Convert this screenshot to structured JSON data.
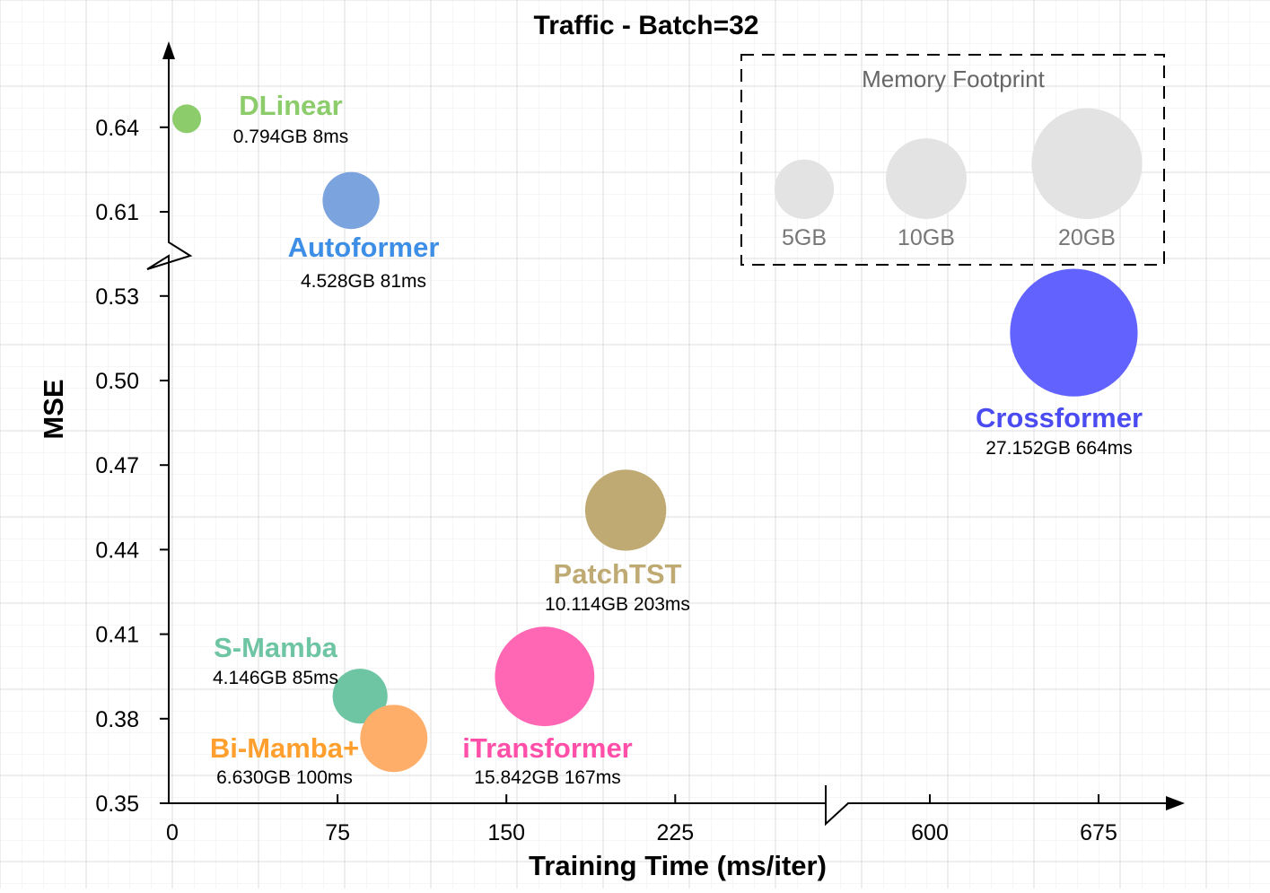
{
  "chart_data": {
    "type": "scatter",
    "variant": "bubble",
    "title": "Traffic - Batch=32",
    "xlabel": "Training Time (ms/iter)",
    "ylabel": "MSE",
    "x_axis": {
      "broken": true,
      "segments": [
        [
          0,
          270
        ],
        [
          570,
          700
        ]
      ],
      "ticks": [
        {
          "value": 0,
          "label": "0"
        },
        {
          "value": 75,
          "label": "75"
        },
        {
          "value": 150,
          "label": "150"
        },
        {
          "value": 225,
          "label": "225"
        },
        {
          "value": 600,
          "label": "600"
        },
        {
          "value": 675,
          "label": "675"
        }
      ]
    },
    "y_axis": {
      "broken": true,
      "segments": [
        [
          0.35,
          0.56
        ],
        [
          0.595,
          0.66
        ]
      ],
      "ticks": [
        {
          "value": 0.35,
          "label": "0.35"
        },
        {
          "value": 0.38,
          "label": "0.38"
        },
        {
          "value": 0.41,
          "label": "0.41"
        },
        {
          "value": 0.44,
          "label": "0.44"
        },
        {
          "value": 0.47,
          "label": "0.47"
        },
        {
          "value": 0.5,
          "label": "0.50"
        },
        {
          "value": 0.53,
          "label": "0.53"
        },
        {
          "value": 0.61,
          "label": "0.61"
        },
        {
          "value": 0.64,
          "label": "0.64"
        }
      ]
    },
    "grid": true,
    "points": [
      {
        "name": "DLinear",
        "x": 8,
        "y": 0.643,
        "memory_gb": 0.794,
        "info": "0.794GB 8ms",
        "color": "#8ccc6a"
      },
      {
        "name": "Autoformer",
        "x": 81,
        "y": 0.614,
        "memory_gb": 4.528,
        "info": "4.528GB 81ms",
        "color": "#7ba3de",
        "label_color": "#3d8ee6"
      },
      {
        "name": "S-Mamba",
        "x": 85,
        "y": 0.388,
        "memory_gb": 4.146,
        "info": "4.146GB 85ms",
        "color": "#6ec5a4"
      },
      {
        "name": "Bi-Mamba+",
        "x": 100,
        "y": 0.373,
        "memory_gb": 6.63,
        "info": "6.630GB 100ms",
        "color": "#ffae6a",
        "label_color": "#ff9f2e"
      },
      {
        "name": "iTransformer",
        "x": 167,
        "y": 0.395,
        "memory_gb": 15.842,
        "info": "15.842GB 167ms",
        "color": "#ff66b3",
        "label_color": "#ff4fa8"
      },
      {
        "name": "PatchTST",
        "x": 203,
        "y": 0.454,
        "memory_gb": 10.114,
        "info": "10.114GB 203ms",
        "color": "#bfaa73"
      },
      {
        "name": "Crossformer",
        "x": 664,
        "y": 0.517,
        "memory_gb": 27.152,
        "info": "27.152GB 664ms",
        "color": "#6262ff",
        "label_color": "#4b4bf2"
      }
    ],
    "legend": {
      "title": "Memory Footprint",
      "placement": "top-right",
      "items": [
        {
          "label": "5GB",
          "memory_gb": 5
        },
        {
          "label": "10GB",
          "memory_gb": 10
        },
        {
          "label": "20GB",
          "memory_gb": 20
        }
      ],
      "color": "#e3e3e3"
    }
  }
}
